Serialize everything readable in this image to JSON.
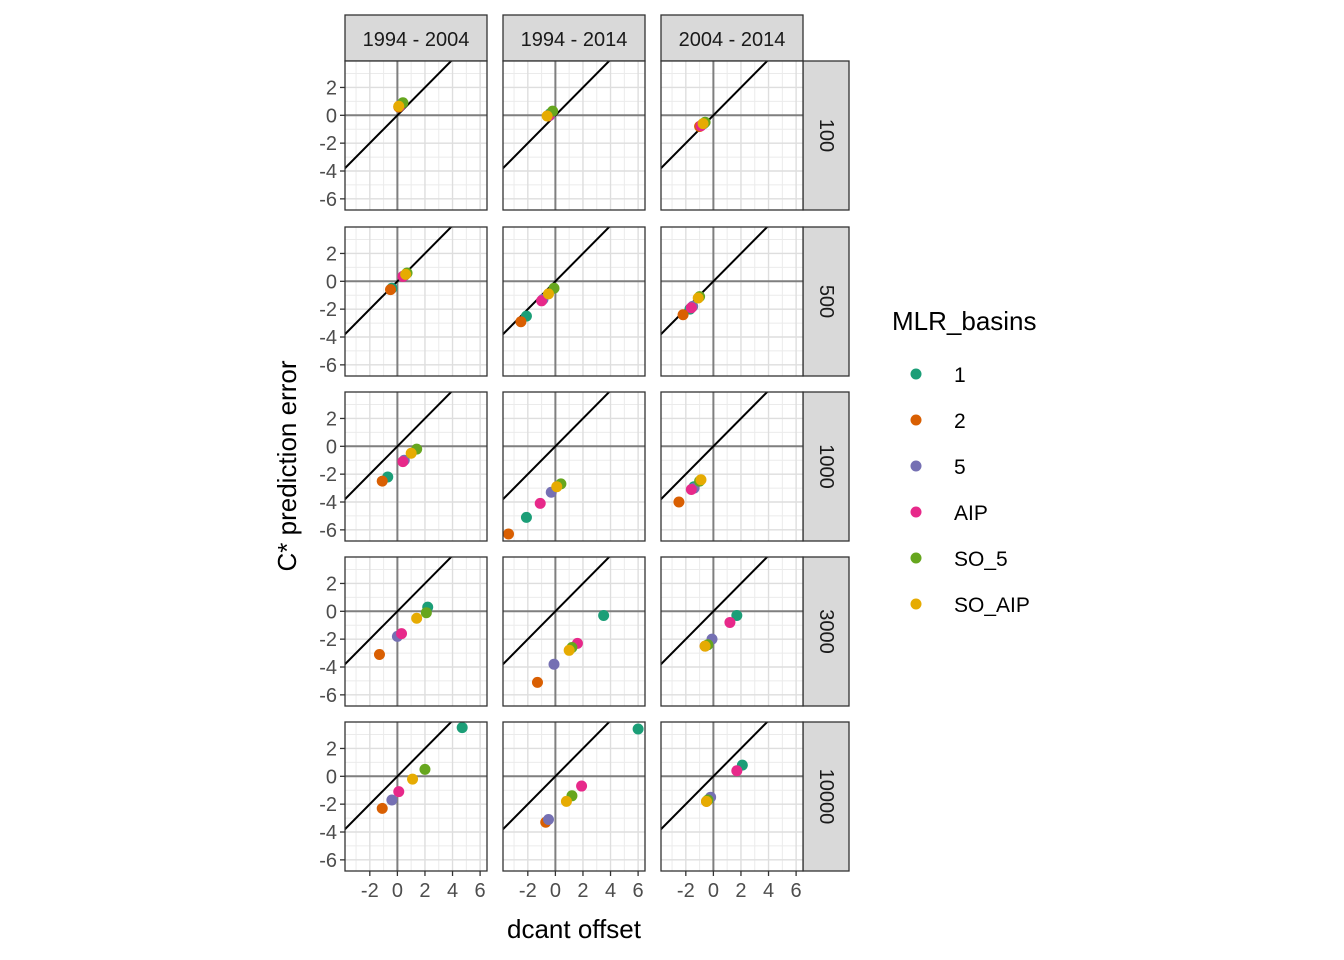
{
  "chart_data": {
    "type": "scatter",
    "xlabel": "dcant offset",
    "ylabel": "C* prediction error",
    "xlim": [
      -3.8,
      6.5
    ],
    "ylim": [
      -6.8,
      3.9
    ],
    "x_ticks": [
      -2,
      0,
      2,
      4,
      6
    ],
    "y_ticks": [
      2,
      0,
      -2,
      -4,
      -6
    ],
    "x_tick_labels": [
      "-2",
      "0",
      "2",
      "4",
      "6"
    ],
    "y_tick_labels": [
      "2",
      "0",
      "-2",
      "-4",
      "-6"
    ],
    "grid": true,
    "reference_lines": [
      "y = x",
      "x = 0",
      "y = 0"
    ],
    "col_facets": [
      "1994 - 2004",
      "1994 - 2014",
      "2004 - 2014"
    ],
    "row_facets": [
      "100",
      "500",
      "1000",
      "3000",
      "10000"
    ],
    "legend": {
      "title": "MLR_basins",
      "position": "right",
      "items": [
        {
          "label": "1",
          "color": "#1b9e77"
        },
        {
          "label": "2",
          "color": "#d95f02"
        },
        {
          "label": "5",
          "color": "#7570b3"
        },
        {
          "label": "AIP",
          "color": "#e7298a"
        },
        {
          "label": "SO_5",
          "color": "#66a61e"
        },
        {
          "label": "SO_AIP",
          "color": "#e6ab02"
        }
      ]
    },
    "panels": [
      {
        "row": "100",
        "col": "1994 - 2004",
        "points": [
          {
            "basin": "1",
            "x": 0.3,
            "y": 0.8
          },
          {
            "basin": "2",
            "x": 0.1,
            "y": 0.6
          },
          {
            "basin": "5",
            "x": 0.2,
            "y": 0.7
          },
          {
            "basin": "AIP",
            "x": 0.2,
            "y": 0.7
          },
          {
            "basin": "SO_5",
            "x": 0.4,
            "y": 0.9
          },
          {
            "basin": "SO_AIP",
            "x": 0.1,
            "y": 0.65
          }
        ]
      },
      {
        "row": "100",
        "col": "1994 - 2014",
        "points": [
          {
            "basin": "1",
            "x": -0.4,
            "y": 0.1
          },
          {
            "basin": "2",
            "x": -0.5,
            "y": -0.05
          },
          {
            "basin": "5",
            "x": -0.4,
            "y": 0.0
          },
          {
            "basin": "AIP",
            "x": -0.45,
            "y": 0.0
          },
          {
            "basin": "SO_5",
            "x": -0.2,
            "y": 0.3
          },
          {
            "basin": "SO_AIP",
            "x": -0.6,
            "y": -0.05
          }
        ]
      },
      {
        "row": "100",
        "col": "2004 - 2014",
        "points": [
          {
            "basin": "1",
            "x": -0.7,
            "y": -0.6
          },
          {
            "basin": "2",
            "x": -1.0,
            "y": -0.8
          },
          {
            "basin": "5",
            "x": -0.8,
            "y": -0.65
          },
          {
            "basin": "AIP",
            "x": -0.9,
            "y": -0.75
          },
          {
            "basin": "SO_5",
            "x": -0.6,
            "y": -0.5
          },
          {
            "basin": "SO_AIP",
            "x": -0.75,
            "y": -0.6
          }
        ]
      },
      {
        "row": "500",
        "col": "1994 - 2004",
        "points": [
          {
            "basin": "1",
            "x": -0.4,
            "y": -0.5
          },
          {
            "basin": "2",
            "x": -0.5,
            "y": -0.6
          },
          {
            "basin": "5",
            "x": 0.5,
            "y": 0.4
          },
          {
            "basin": "AIP",
            "x": 0.4,
            "y": 0.35
          },
          {
            "basin": "SO_5",
            "x": 0.7,
            "y": 0.6
          },
          {
            "basin": "SO_AIP",
            "x": 0.6,
            "y": 0.5
          }
        ]
      },
      {
        "row": "500",
        "col": "1994 - 2014",
        "points": [
          {
            "basin": "1",
            "x": -2.1,
            "y": -2.5
          },
          {
            "basin": "2",
            "x": -2.5,
            "y": -2.9
          },
          {
            "basin": "5",
            "x": -0.9,
            "y": -1.3
          },
          {
            "basin": "AIP",
            "x": -1.0,
            "y": -1.4
          },
          {
            "basin": "SO_5",
            "x": -0.1,
            "y": -0.5
          },
          {
            "basin": "SO_AIP",
            "x": -0.5,
            "y": -0.9
          }
        ]
      },
      {
        "row": "500",
        "col": "2004 - 2014",
        "points": [
          {
            "basin": "1",
            "x": -1.7,
            "y": -2.0
          },
          {
            "basin": "2",
            "x": -2.2,
            "y": -2.4
          },
          {
            "basin": "5",
            "x": -1.5,
            "y": -1.8
          },
          {
            "basin": "AIP",
            "x": -1.6,
            "y": -1.9
          },
          {
            "basin": "SO_5",
            "x": -1.0,
            "y": -1.1
          },
          {
            "basin": "SO_AIP",
            "x": -1.1,
            "y": -1.2
          }
        ]
      },
      {
        "row": "1000",
        "col": "1994 - 2004",
        "points": [
          {
            "basin": "1",
            "x": -0.7,
            "y": -2.2
          },
          {
            "basin": "2",
            "x": -1.1,
            "y": -2.5
          },
          {
            "basin": "5",
            "x": 0.5,
            "y": -1.0
          },
          {
            "basin": "AIP",
            "x": 0.4,
            "y": -1.1
          },
          {
            "basin": "SO_5",
            "x": 1.4,
            "y": -0.2
          },
          {
            "basin": "SO_AIP",
            "x": 1.0,
            "y": -0.5
          }
        ]
      },
      {
        "row": "1000",
        "col": "1994 - 2014",
        "points": [
          {
            "basin": "1",
            "x": -2.1,
            "y": -5.1
          },
          {
            "basin": "2",
            "x": -3.4,
            "y": -6.3
          },
          {
            "basin": "5",
            "x": -0.3,
            "y": -3.3
          },
          {
            "basin": "AIP",
            "x": -1.1,
            "y": -4.1
          },
          {
            "basin": "SO_5",
            "x": 0.4,
            "y": -2.7
          },
          {
            "basin": "SO_AIP",
            "x": 0.1,
            "y": -2.9
          }
        ]
      },
      {
        "row": "1000",
        "col": "2004 - 2014",
        "points": [
          {
            "basin": "1",
            "x": -1.4,
            "y": -2.9
          },
          {
            "basin": "2",
            "x": -2.5,
            "y": -4.0
          },
          {
            "basin": "5",
            "x": -1.4,
            "y": -3.0
          },
          {
            "basin": "AIP",
            "x": -1.6,
            "y": -3.1
          },
          {
            "basin": "SO_5",
            "x": -1.0,
            "y": -2.5
          },
          {
            "basin": "SO_AIP",
            "x": -0.9,
            "y": -2.4
          }
        ]
      },
      {
        "row": "3000",
        "col": "1994 - 2004",
        "points": [
          {
            "basin": "1",
            "x": 2.2,
            "y": 0.3
          },
          {
            "basin": "2",
            "x": -1.3,
            "y": -3.1
          },
          {
            "basin": "5",
            "x": -0.0,
            "y": -1.8
          },
          {
            "basin": "AIP",
            "x": 0.3,
            "y": -1.6
          },
          {
            "basin": "SO_5",
            "x": 2.1,
            "y": -0.1
          },
          {
            "basin": "SO_AIP",
            "x": 1.4,
            "y": -0.5
          }
        ]
      },
      {
        "row": "3000",
        "col": "1994 - 2014",
        "points": [
          {
            "basin": "1",
            "x": 3.5,
            "y": -0.3
          },
          {
            "basin": "2",
            "x": -1.3,
            "y": -5.1
          },
          {
            "basin": "5",
            "x": -0.1,
            "y": -3.8
          },
          {
            "basin": "AIP",
            "x": 1.6,
            "y": -2.3
          },
          {
            "basin": "SO_5",
            "x": 1.2,
            "y": -2.6
          },
          {
            "basin": "SO_AIP",
            "x": 1.0,
            "y": -2.8
          }
        ]
      },
      {
        "row": "3000",
        "col": "2004 - 2014",
        "points": [
          {
            "basin": "1",
            "x": 1.7,
            "y": -0.3
          },
          {
            "basin": "2",
            "x": -0.6,
            "y": -2.5
          },
          {
            "basin": "5",
            "x": -0.1,
            "y": -2.0
          },
          {
            "basin": "AIP",
            "x": 1.2,
            "y": -0.8
          },
          {
            "basin": "SO_5",
            "x": -0.4,
            "y": -2.4
          },
          {
            "basin": "SO_AIP",
            "x": -0.6,
            "y": -2.5
          }
        ]
      },
      {
        "row": "10000",
        "col": "1994 - 2004",
        "points": [
          {
            "basin": "1",
            "x": 4.7,
            "y": 3.5
          },
          {
            "basin": "2",
            "x": -1.1,
            "y": -2.3
          },
          {
            "basin": "5",
            "x": -0.4,
            "y": -1.7
          },
          {
            "basin": "AIP",
            "x": 0.1,
            "y": -1.1
          },
          {
            "basin": "SO_5",
            "x": 2.0,
            "y": 0.5
          },
          {
            "basin": "SO_AIP",
            "x": 1.1,
            "y": -0.2
          }
        ]
      },
      {
        "row": "10000",
        "col": "1994 - 2014",
        "points": [
          {
            "basin": "1",
            "x": 6.0,
            "y": 3.4
          },
          {
            "basin": "2",
            "x": -0.7,
            "y": -3.3
          },
          {
            "basin": "5",
            "x": -0.5,
            "y": -3.1
          },
          {
            "basin": "AIP",
            "x": 1.9,
            "y": -0.7
          },
          {
            "basin": "SO_5",
            "x": 1.2,
            "y": -1.4
          },
          {
            "basin": "SO_AIP",
            "x": 0.8,
            "y": -1.8
          }
        ]
      },
      {
        "row": "10000",
        "col": "2004 - 2014",
        "points": [
          {
            "basin": "1",
            "x": 2.1,
            "y": 0.8
          },
          {
            "basin": "2",
            "x": -0.5,
            "y": -1.8
          },
          {
            "basin": "5",
            "x": -0.2,
            "y": -1.5
          },
          {
            "basin": "AIP",
            "x": 1.7,
            "y": 0.4
          },
          {
            "basin": "SO_5",
            "x": -0.4,
            "y": -1.7
          },
          {
            "basin": "SO_AIP",
            "x": -0.5,
            "y": -1.8
          }
        ]
      }
    ]
  }
}
